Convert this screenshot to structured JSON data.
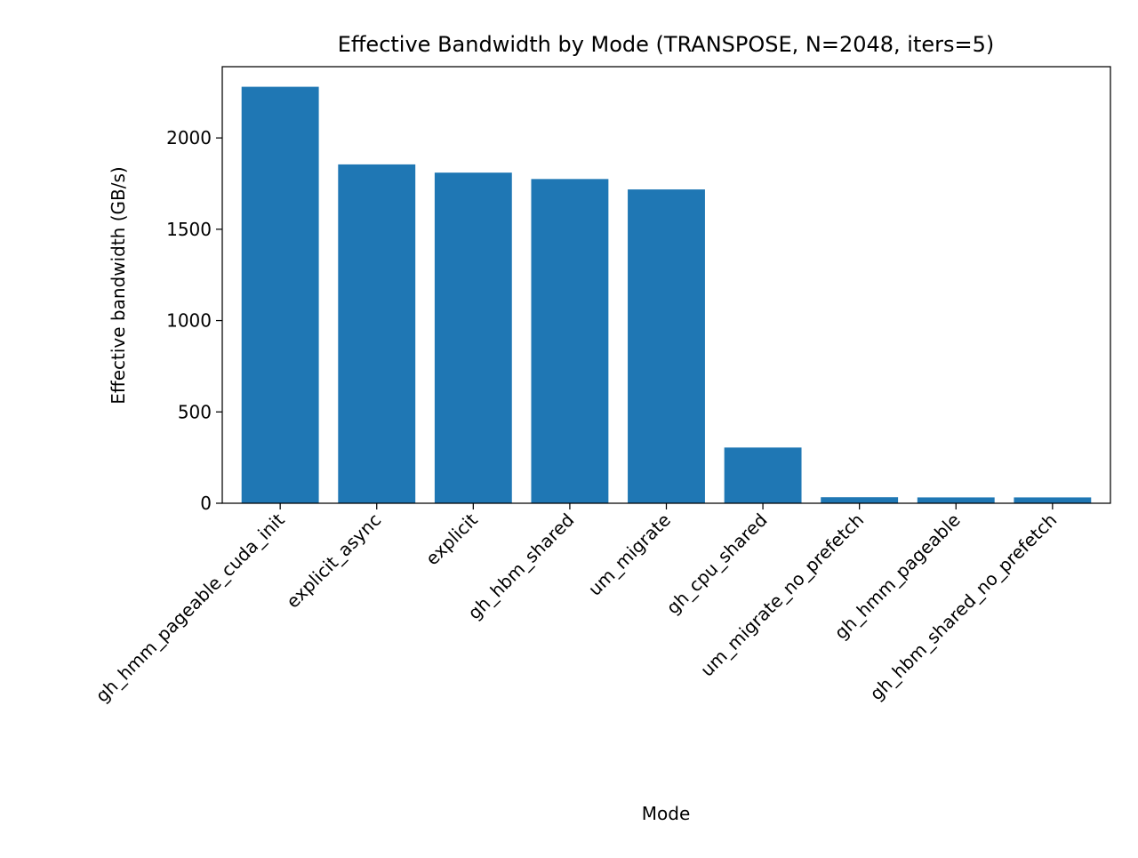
{
  "chart_data": {
    "type": "bar",
    "title": "Effective Bandwidth by Mode (TRANSPOSE, N=2048, iters=5)",
    "xlabel": "Mode",
    "ylabel": "Effective bandwidth (GB/s)",
    "categories": [
      "gh_hmm_pageable_cuda_init",
      "explicit_async",
      "explicit",
      "gh_hbm_shared",
      "um_migrate",
      "gh_cpu_shared",
      "um_migrate_no_prefetch",
      "gh_hmm_pageable",
      "gh_hbm_shared_no_prefetch"
    ],
    "values": [
      2280,
      1855,
      1810,
      1775,
      1718,
      305,
      33,
      32,
      32
    ],
    "ylim": [
      0,
      2390
    ],
    "yticks": [
      0,
      500,
      1000,
      1500,
      2000
    ],
    "grid": false,
    "bar_color": "#1f77b4"
  }
}
